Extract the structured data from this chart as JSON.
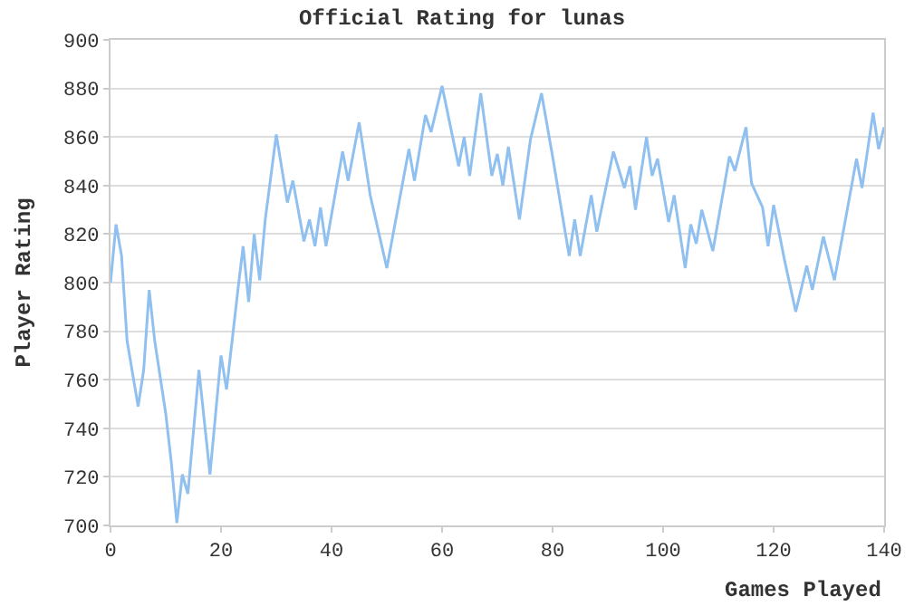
{
  "chart_data": {
    "type": "line",
    "title": "Official Rating for lunas",
    "xlabel": "Games Played",
    "ylabel": "Player Rating",
    "x": [
      0,
      1,
      2,
      3,
      5,
      6,
      7,
      8,
      10,
      11,
      12,
      13,
      14,
      16,
      18,
      20,
      21,
      23,
      24,
      25,
      26,
      27,
      28,
      30,
      32,
      33,
      35,
      36,
      37,
      38,
      39,
      42,
      43,
      45,
      47,
      50,
      54,
      55,
      57,
      58,
      60,
      62,
      63,
      64,
      65,
      67,
      69,
      70,
      71,
      72,
      74,
      76,
      78,
      80,
      83,
      84,
      85,
      87,
      88,
      91,
      93,
      94,
      95,
      97,
      98,
      99,
      101,
      102,
      104,
      105,
      106,
      107,
      109,
      112,
      113,
      115,
      116,
      118,
      119,
      120,
      122,
      124,
      126,
      127,
      129,
      131,
      135,
      136,
      138,
      139,
      140
    ],
    "series": [
      {
        "color": "#90c0f0",
        "values": [
          800,
          824,
          811,
          776,
          749,
          764,
          797,
          776,
          746,
          726,
          701,
          721,
          713,
          764,
          721,
          770,
          756,
          796,
          815,
          792,
          820,
          801,
          826,
          861,
          833,
          842,
          817,
          826,
          815,
          831,
          815,
          854,
          842,
          866,
          836,
          806,
          855,
          842,
          869,
          862,
          881,
          859,
          848,
          860,
          844,
          878,
          844,
          853,
          840,
          856,
          826,
          859,
          878,
          852,
          811,
          826,
          811,
          836,
          821,
          854,
          839,
          848,
          830,
          860,
          844,
          851,
          825,
          836,
          806,
          824,
          816,
          830,
          813,
          852,
          846,
          864,
          841,
          831,
          815,
          832,
          809,
          788,
          807,
          797,
          819,
          801,
          851,
          839,
          870,
          855,
          864
        ]
      }
    ],
    "xlim": [
      0,
      140
    ],
    "xticks": [
      0,
      20,
      40,
      60,
      80,
      100,
      120,
      140
    ],
    "ylim": [
      700,
      900
    ],
    "yticks": [
      700,
      720,
      740,
      760,
      780,
      800,
      820,
      840,
      860,
      880,
      900
    ],
    "grid": "y",
    "legend": false,
    "marker": "none",
    "line_style": "solid"
  }
}
